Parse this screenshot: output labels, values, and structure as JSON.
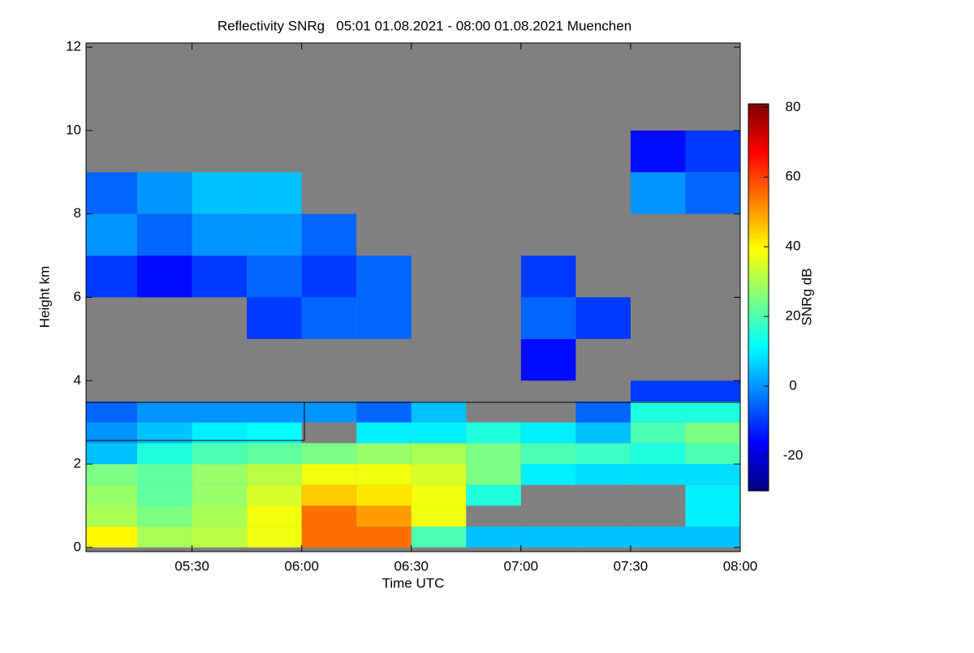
{
  "chart_data": {
    "type": "heatmap",
    "title": "Reflectivity SNRg   05:01 01.08.2021 - 08:00 01.08.2021 Muenchen",
    "x_label": "Time UTC",
    "y_label": "Height km",
    "colorbar_label": "SNRg dB",
    "x": [
      "05:01",
      "05:15",
      "05:30",
      "05:45",
      "06:00",
      "06:15",
      "06:30",
      "06:45",
      "07:00",
      "07:15",
      "07:30",
      "07:45",
      "08:00"
    ],
    "y": [
      0,
      0.5,
      1,
      1.5,
      2,
      2.5,
      3,
      3.5,
      4,
      5,
      6,
      7,
      8,
      9,
      10,
      12
    ],
    "z": [
      [
        40,
        30,
        32,
        38,
        55,
        55,
        20,
        5,
        5,
        5,
        5,
        5
      ],
      [
        30,
        25,
        30,
        38,
        55,
        50,
        38,
        null,
        null,
        null,
        null,
        10
      ],
      [
        28,
        22,
        28,
        35,
        45,
        42,
        38,
        15,
        null,
        null,
        null,
        10
      ],
      [
        25,
        22,
        28,
        32,
        38,
        38,
        35,
        25,
        10,
        8,
        8,
        8
      ],
      [
        5,
        15,
        20,
        22,
        25,
        28,
        30,
        25,
        20,
        18,
        15,
        20
      ],
      [
        0,
        5,
        10,
        12,
        null,
        10,
        10,
        15,
        10,
        5,
        20,
        25
      ],
      [
        -5,
        0,
        0,
        0,
        0,
        -5,
        5,
        null,
        null,
        -5,
        15,
        15
      ],
      [
        null,
        null,
        null,
        null,
        null,
        null,
        null,
        null,
        null,
        null,
        -10,
        -10
      ],
      [
        null,
        null,
        null,
        null,
        null,
        null,
        null,
        null,
        -15,
        null,
        null,
        null
      ],
      [
        null,
        null,
        null,
        -10,
        -5,
        -5,
        null,
        null,
        -5,
        -10,
        null,
        null
      ],
      [
        -10,
        -15,
        -10,
        -5,
        -10,
        -5,
        null,
        null,
        -10,
        null,
        null,
        null
      ],
      [
        0,
        -5,
        0,
        0,
        -5,
        null,
        null,
        null,
        null,
        null,
        null,
        null
      ],
      [
        -5,
        0,
        5,
        5,
        null,
        null,
        null,
        null,
        null,
        null,
        0,
        -5
      ],
      [
        null,
        null,
        null,
        null,
        null,
        null,
        null,
        null,
        null,
        null,
        -15,
        -10
      ],
      [
        null,
        null,
        null,
        null,
        null,
        null,
        null,
        null,
        null,
        null,
        null,
        null
      ]
    ],
    "missing_color": "#808080",
    "colormap": "jet",
    "xlim": [
      "05:01",
      "08:00"
    ],
    "xticks": [
      "05:30",
      "06:00",
      "06:30",
      "07:00",
      "07:30",
      "08:00"
    ],
    "ylim": [
      -0.1,
      12.1
    ],
    "yticks": [
      0,
      2,
      4,
      6,
      8,
      10,
      12
    ],
    "clim": [
      -30,
      81
    ],
    "cticks": [
      -20,
      0,
      20,
      40,
      60,
      80
    ]
  }
}
